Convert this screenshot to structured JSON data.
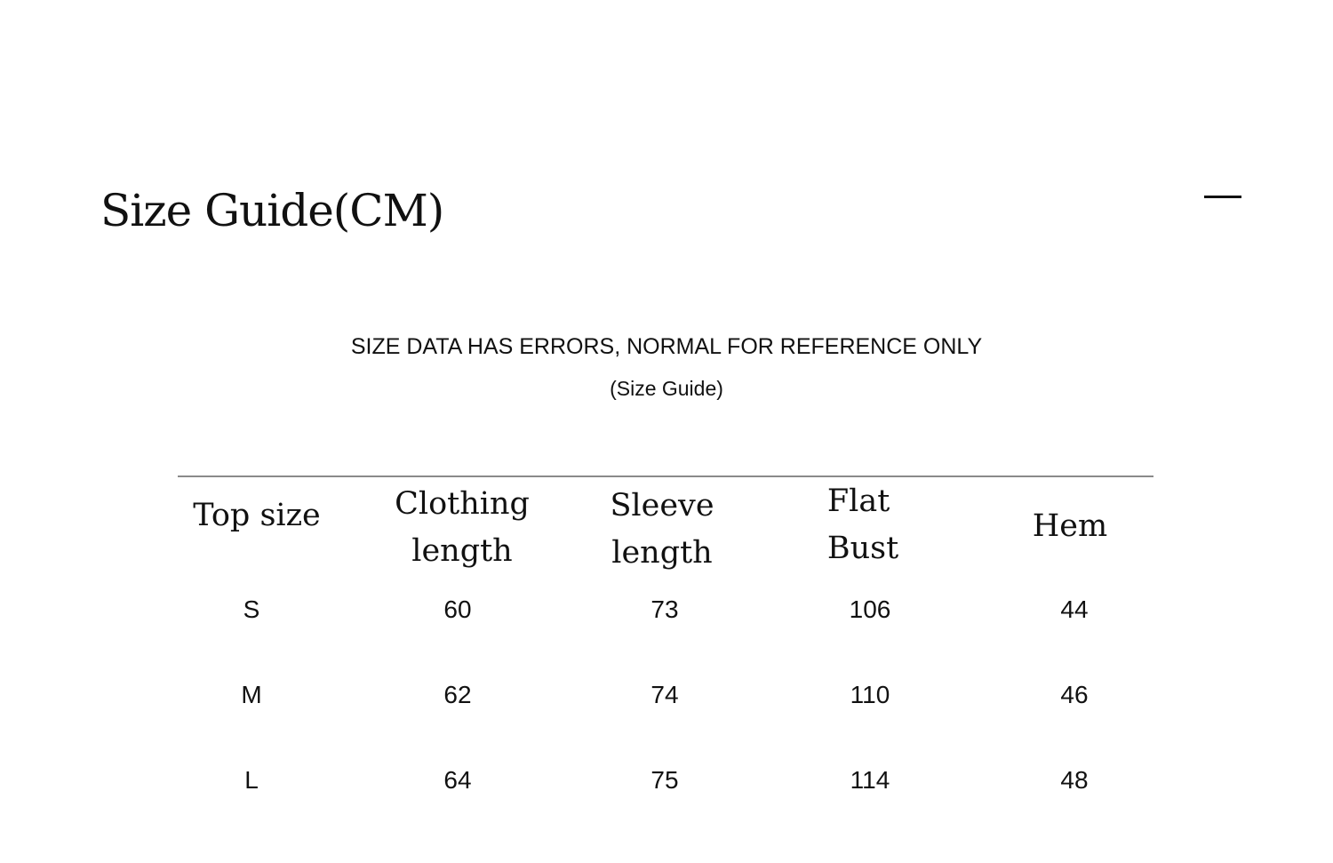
{
  "title": "Size Guide(CM)",
  "notice": "SIZE DATA HAS ERRORS, NORMAL FOR REFERENCE ONLY",
  "subtitle": "(Size Guide)",
  "table": {
    "headers": [
      [
        "Top size"
      ],
      [
        "Clothing",
        "length"
      ],
      [
        "Sleeve",
        "length"
      ],
      [
        "Flat",
        "Bust"
      ],
      [
        "Hem"
      ]
    ],
    "rows": [
      [
        "S",
        "60",
        "73",
        "106",
        "44"
      ],
      [
        "M",
        "62",
        "74",
        "110",
        "46"
      ],
      [
        "L",
        "64",
        "75",
        "114",
        "48"
      ]
    ]
  }
}
